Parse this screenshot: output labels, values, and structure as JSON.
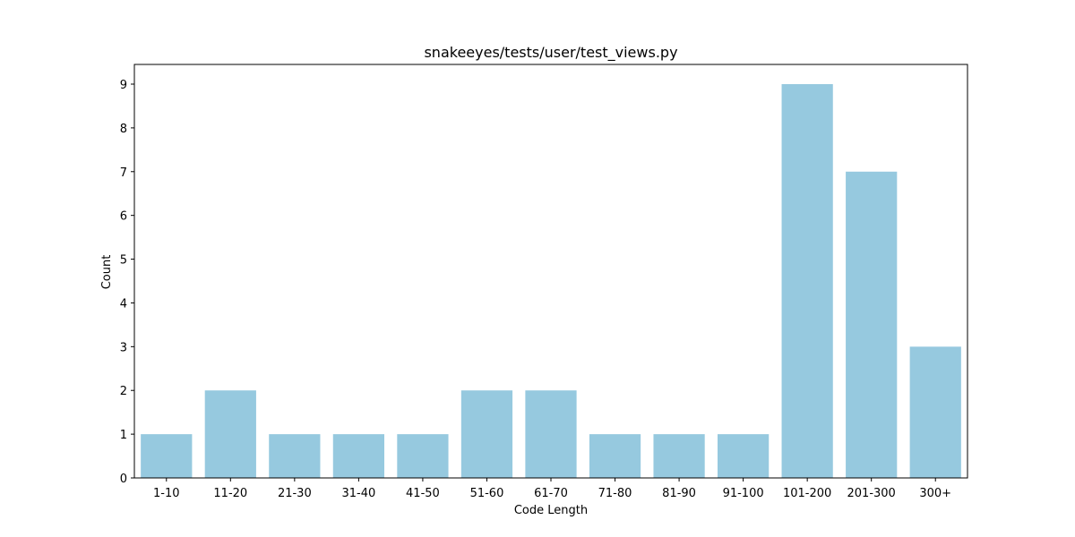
{
  "chart_data": {
    "type": "bar",
    "title": "snakeeyes/tests/user/test_views.py",
    "xlabel": "Code Length",
    "ylabel": "Count",
    "categories": [
      "1-10",
      "11-20",
      "21-30",
      "31-40",
      "41-50",
      "51-60",
      "61-70",
      "71-80",
      "81-90",
      "91-100",
      "101-200",
      "201-300",
      "300+"
    ],
    "values": [
      1,
      2,
      1,
      1,
      1,
      2,
      2,
      1,
      1,
      1,
      9,
      7,
      3
    ],
    "ylim": [
      0,
      9.45
    ],
    "yticks": [
      0,
      1,
      2,
      3,
      4,
      5,
      6,
      7,
      8,
      9
    ],
    "grid": false,
    "bar_color": "#96c9df"
  }
}
